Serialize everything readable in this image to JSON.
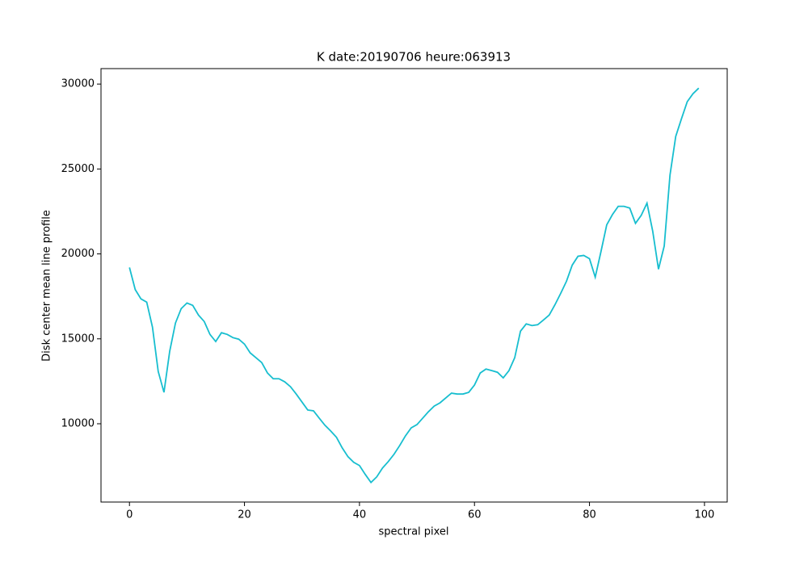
{
  "chart_data": {
    "type": "line",
    "title": "K date:20190706 heure:063913",
    "x_label": "spectral pixel",
    "y_label": "Disk center mean line profile",
    "x": [
      0,
      1,
      2,
      3,
      4,
      5,
      6,
      7,
      8,
      9,
      10,
      11,
      12,
      13,
      14,
      15,
      16,
      17,
      18,
      19,
      20,
      21,
      22,
      23,
      24,
      25,
      26,
      27,
      28,
      29,
      30,
      31,
      32,
      33,
      34,
      35,
      36,
      37,
      38,
      39,
      40,
      41,
      42,
      43,
      44,
      45,
      46,
      47,
      48,
      49,
      50,
      51,
      52,
      53,
      54,
      55,
      56,
      57,
      58,
      59,
      60,
      61,
      62,
      63,
      64,
      65,
      66,
      67,
      68,
      69,
      70,
      71,
      72,
      73,
      74,
      75,
      76,
      77,
      78,
      79,
      80,
      81,
      82,
      83,
      84,
      85,
      86,
      87,
      88,
      89,
      90,
      91,
      92,
      93,
      94,
      95,
      96,
      97,
      98,
      99
    ],
    "series": [
      {
        "color": "#17becf",
        "values": [
          19200,
          17900,
          17350,
          17160,
          15690,
          13080,
          11850,
          14270,
          15930,
          16780,
          17110,
          16970,
          16400,
          16020,
          15260,
          14840,
          15360,
          15260,
          15070,
          14980,
          14690,
          14170,
          13890,
          13600,
          12990,
          12650,
          12650,
          12470,
          12180,
          11750,
          11280,
          10810,
          10760,
          10330,
          9910,
          9570,
          9200,
          8580,
          8060,
          7730,
          7540,
          7020,
          6540,
          6870,
          7390,
          7770,
          8200,
          8720,
          9290,
          9760,
          9950,
          10330,
          10710,
          11040,
          11230,
          11520,
          11800,
          11750,
          11750,
          11850,
          12280,
          12990,
          13220,
          13130,
          13030,
          12700,
          13130,
          13890,
          15450,
          15880,
          15780,
          15830,
          16110,
          16400,
          17010,
          17680,
          18390,
          19340,
          19860,
          19910,
          19720,
          18630,
          20140,
          21710,
          22320,
          22800,
          22800,
          22700,
          21800,
          22270,
          22990,
          21330,
          19100,
          20470,
          24640,
          26920,
          27960,
          28960,
          29430,
          29760
        ]
      }
    ],
    "xlim": [
      -4.95,
      103.95
    ],
    "xticks": [
      0,
      20,
      40,
      60,
      80,
      100
    ],
    "ylim": [
      5390,
      30910
    ],
    "yticks": [
      10000,
      15000,
      20000,
      25000,
      30000
    ]
  }
}
